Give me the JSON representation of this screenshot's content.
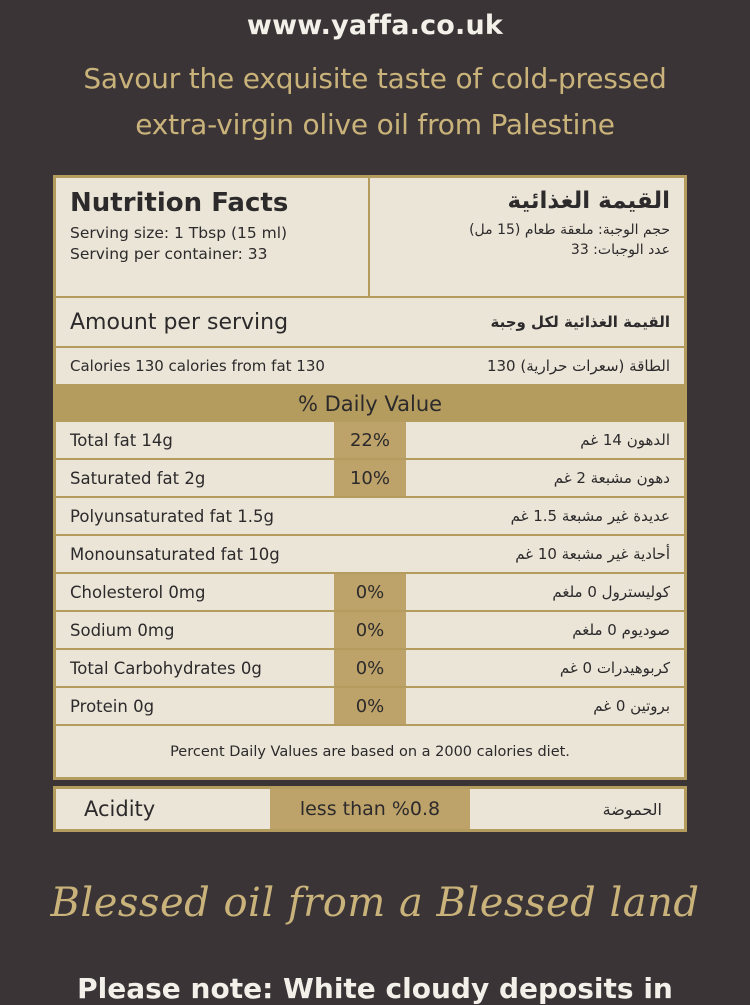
{
  "header": {
    "url": "www.yaffa.co.uk",
    "tagline_line1": "Savour the exquisite taste of cold-pressed",
    "tagline_line2": "extra-virgin olive oil from Palestine"
  },
  "nutrition": {
    "title_en": "Nutrition Facts",
    "title_ar": "القيمة الغذائية",
    "serving_size_en": "Serving size: 1 Tbsp (15 ml)",
    "serving_size_ar": "حجم الوجبة: ملعقة طعام (15 مل)",
    "servings_en": "Serving per container: 33",
    "servings_ar": "عدد الوجبات: 33",
    "amount_en": "Amount per serving",
    "amount_ar": "القيمة الغذائية لكل وجبة",
    "calories_en": "Calories 130 calories from fat 130",
    "calories_ar": "الطاقة (سعرات حرارية)  130",
    "daily_value_header": "% Daily Value",
    "rows": [
      {
        "en": "Total fat 14g",
        "pct": "22%",
        "ar": "الدهون 14 غم"
      },
      {
        "en": "Saturated fat 2g",
        "pct": "10%",
        "ar": "دهون مشبعة 2 غم"
      },
      {
        "en": "Polyunsaturated fat 1.5g",
        "pct": "",
        "ar": "عديدة غير مشبعة 1.5 غم"
      },
      {
        "en": "Monounsaturated fat 10g",
        "pct": "",
        "ar": "أحادية غير مشبعة 10 غم"
      },
      {
        "en": "Cholesterol 0mg",
        "pct": "0%",
        "ar": "كوليسترول 0 ملغم"
      },
      {
        "en": "Sodium 0mg",
        "pct": "0%",
        "ar": "صوديوم 0 ملغم"
      },
      {
        "en": "Total Carbohydrates 0g",
        "pct": "0%",
        "ar": "كربوهيدرات 0 غم"
      },
      {
        "en": "Protein 0g",
        "pct": "0%",
        "ar": "بروتين 0 غم"
      }
    ],
    "footnote": "Percent Daily Values are based on a 2000 calories diet."
  },
  "acidity": {
    "label_en": "Acidity",
    "value": "less than %0.8",
    "label_ar": "الحموضة"
  },
  "slogan": "Blessed oil from a Blessed land",
  "note_partial": "Please note: White cloudy deposits in"
}
